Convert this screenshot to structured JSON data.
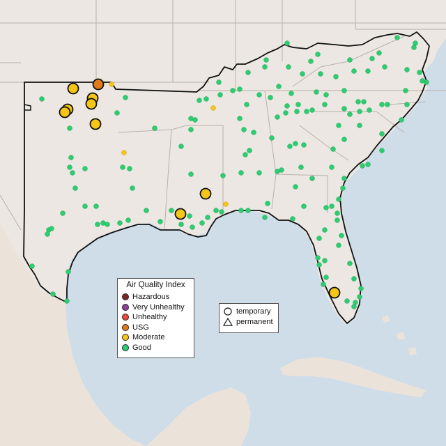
{
  "legend": {
    "title": "Air Quality Index",
    "categories": [
      {
        "label": "Hazardous",
        "color": "#7e2323"
      },
      {
        "label": "Very Unhealthy",
        "color": "#8f3f97"
      },
      {
        "label": "Unhealthy",
        "color": "#e8473c"
      },
      {
        "label": "USG",
        "color": "#e07b1c"
      },
      {
        "label": "Moderate",
        "color": "#f5c518"
      },
      {
        "label": "Good",
        "color": "#2ecc71"
      }
    ]
  },
  "shape_legend": {
    "items": [
      {
        "label": "temporary",
        "icon": "circle-icon"
      },
      {
        "label": "permanent",
        "icon": "triangle-icon"
      }
    ]
  },
  "colors": {
    "land": "#ece7e2",
    "water": "#cfdde9",
    "state_border": "#b9b1ab",
    "region_outline": "#111111"
  }
}
